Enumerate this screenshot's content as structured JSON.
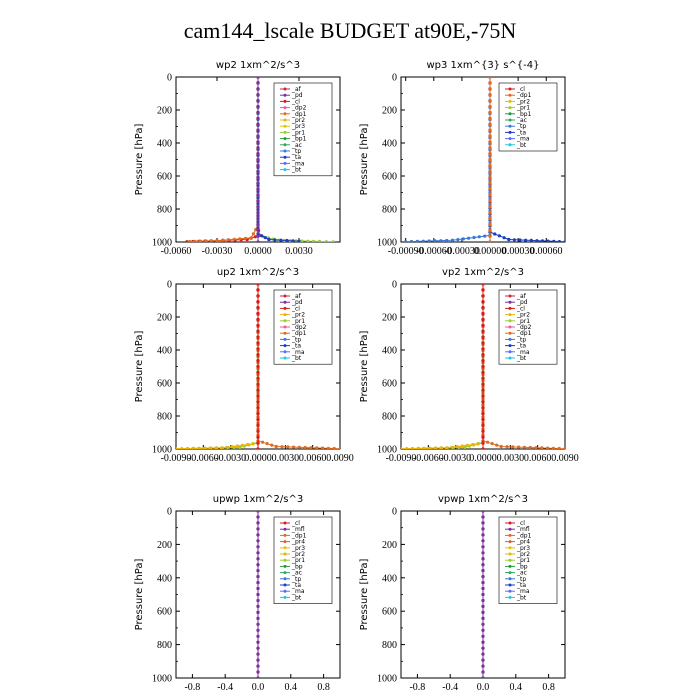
{
  "figure": {
    "title": "cam144_lscale  BUDGET at90E,-75N"
  },
  "colors": {
    "_af": "#cc2244",
    "_pd": "#7a2fa0",
    "_cl": "#d81b1b",
    "_dp2": "#ee5aa0",
    "_dp1": "#e26b1e",
    "_pr2": "#f0b400",
    "_pr3": "#e8c200",
    "_pr1": "#9acd32",
    "_bp1": "#1e9e3a",
    "_bp": "#1e9e3a",
    "_ac": "#2faa5a",
    "_tp": "#3a78d8",
    "_ta": "#1a3fc0",
    "_ma": "#5a6cff",
    "_bt": "#1fc8e0",
    "_mfl": "#7a2fa0",
    "_pr4": "#e05a3a"
  },
  "chart_data": [
    {
      "type": "line",
      "title": "wp2   1xm^2/s^3",
      "ylabel": "Pressure [hPa]",
      "ylim": [
        1000,
        0
      ],
      "xlim": [
        -0.006,
        0.006
      ],
      "xticks": [
        -0.006,
        -0.003,
        0.0,
        0.003
      ],
      "xtick_labels": [
        "-0.0060",
        "-0.0030",
        "0.0000",
        "0.0030"
      ],
      "yticks": [
        0,
        200,
        400,
        600,
        800,
        1000
      ],
      "ytick_labels": [
        "0",
        "200",
        "400",
        "600",
        "800",
        "1000"
      ],
      "legend": [
        "_af",
        "_pd",
        "_cl",
        "_dp2",
        "_dp1",
        "_pr2",
        "_pr3",
        "_pr1",
        "_bp1",
        "_ac",
        "_tp",
        "_ta",
        "_ma",
        "_bt"
      ],
      "legend_placement": "top-right",
      "series": [
        {
          "key": "_cl",
          "points": [
            [
              0,
              0
            ],
            [
              0,
              900
            ],
            [
              0.0001,
              960
            ],
            [
              -0.0008,
              985
            ],
            [
              -0.0052,
              998
            ]
          ]
        },
        {
          "key": "_dp1",
          "points": [
            [
              0,
              0
            ],
            [
              0,
              900
            ],
            [
              -0.0005,
              975
            ],
            [
              -0.003,
              992
            ],
            [
              -0.005,
              997
            ]
          ]
        },
        {
          "key": "_pr1",
          "points": [
            [
              0,
              0
            ],
            [
              0,
              960
            ],
            [
              0.0015,
              990
            ],
            [
              0.0045,
              997
            ],
            [
              0.0055,
              999
            ]
          ]
        },
        {
          "key": "_ta",
          "points": [
            [
              0,
              0
            ],
            [
              0,
              950
            ],
            [
              0.0008,
              985
            ],
            [
              0.003,
              995
            ]
          ]
        },
        {
          "key": "_af",
          "points": [
            [
              0,
              0
            ],
            [
              0,
              1000
            ]
          ]
        },
        {
          "key": "_pd",
          "points": [
            [
              0,
              0
            ],
            [
              0,
              1000
            ]
          ]
        }
      ]
    },
    {
      "type": "line",
      "title": "wp3   1xm^{3} s^{-4}",
      "ylabel": "Pressure [hPa]",
      "ylim": [
        1000,
        0
      ],
      "xlim": [
        -0.00095,
        0.0008
      ],
      "xticks": [
        -0.0009,
        -0.0006,
        -0.0003,
        0.0,
        0.0003,
        0.0006
      ],
      "xtick_labels": [
        "-0.00090",
        "-0.00060",
        "-0.00030",
        "0.00000",
        "0.00030",
        "0.00060"
      ],
      "yticks": [
        0,
        200,
        400,
        600,
        800,
        1000
      ],
      "ytick_labels": [
        "0",
        "200",
        "400",
        "600",
        "800",
        "1000"
      ],
      "legend": [
        "_cl",
        "_dp1",
        "_pr2",
        "_pr1",
        "_bp1",
        "_ac",
        "_tp",
        "_ta",
        "_ma",
        "_bt"
      ],
      "legend_placement": "top-right",
      "series": [
        {
          "key": "_ta",
          "points": [
            [
              0,
              0
            ],
            [
              0,
              940
            ],
            [
              0.0002,
              985
            ],
            [
              0.0008,
              999
            ]
          ]
        },
        {
          "key": "_tp",
          "points": [
            [
              0,
              0
            ],
            [
              0,
              960
            ],
            [
              -0.0004,
              990
            ],
            [
              -0.0009,
              998
            ]
          ]
        },
        {
          "key": "_cl",
          "points": [
            [
              0,
              0
            ],
            [
              0,
              1000
            ]
          ]
        },
        {
          "key": "_dp1",
          "points": [
            [
              0,
              0
            ],
            [
              0,
              1000
            ]
          ]
        }
      ]
    },
    {
      "type": "line",
      "title": "up2   1xm^2/s^3",
      "ylabel": "Pressure [hPa]",
      "ylim": [
        1000,
        0
      ],
      "xlim": [
        -0.009,
        0.009
      ],
      "xticks": [
        -0.009,
        -0.006,
        -0.003,
        0.0,
        0.003,
        0.006,
        0.009
      ],
      "xtick_labels": [
        "-0.0090",
        "-0.0060",
        "-0.0030",
        "0.0000",
        "0.0030",
        "0.0060",
        "0.0090"
      ],
      "yticks": [
        0,
        200,
        400,
        600,
        800,
        1000
      ],
      "ytick_labels": [
        "0",
        "200",
        "400",
        "600",
        "800",
        "1000"
      ],
      "legend": [
        "_af",
        "_pd",
        "_cl",
        "_pr2",
        "_pr1",
        "_dp2",
        "_dp1",
        "_tp",
        "_ta",
        "_ma",
        "_bt"
      ],
      "legend_placement": "top-right",
      "series": [
        {
          "key": "_pr1",
          "points": [
            [
              0,
              0
            ],
            [
              0,
              960
            ],
            [
              -0.002,
              990
            ],
            [
              -0.009,
              999
            ]
          ]
        },
        {
          "key": "_pr2",
          "points": [
            [
              0,
              0
            ],
            [
              0,
              965
            ],
            [
              -0.004,
              994
            ],
            [
              -0.009,
              999
            ]
          ]
        },
        {
          "key": "_dp1",
          "points": [
            [
              0,
              0
            ],
            [
              0,
              950
            ],
            [
              0.002,
              985
            ],
            [
              0.009,
              998
            ]
          ]
        },
        {
          "key": "_af",
          "points": [
            [
              0,
              0
            ],
            [
              0,
              1000
            ]
          ]
        },
        {
          "key": "_cl",
          "points": [
            [
              0,
              0
            ],
            [
              0,
              1000
            ]
          ]
        }
      ]
    },
    {
      "type": "line",
      "title": "vp2   1xm^2/s^3",
      "ylabel": "Pressure [hPa]",
      "ylim": [
        1000,
        0
      ],
      "xlim": [
        -0.009,
        0.009
      ],
      "xticks": [
        -0.009,
        -0.006,
        -0.003,
        0.0,
        0.003,
        0.006,
        0.009
      ],
      "xtick_labels": [
        "-0.0090",
        "-0.0060",
        "-0.0030",
        "0.0000",
        "0.0030",
        "0.0060",
        "0.0090"
      ],
      "yticks": [
        0,
        200,
        400,
        600,
        800,
        1000
      ],
      "ytick_labels": [
        "0",
        "200",
        "400",
        "600",
        "800",
        "1000"
      ],
      "legend": [
        "_af",
        "_pd",
        "_cl",
        "_pr2",
        "_pr1",
        "_dp2",
        "_dp1",
        "_tp",
        "_ta",
        "_ma",
        "_bt"
      ],
      "legend_placement": "top-right",
      "series": [
        {
          "key": "_pr1",
          "points": [
            [
              0,
              0
            ],
            [
              0,
              960
            ],
            [
              -0.002,
              990
            ],
            [
              -0.009,
              999
            ]
          ]
        },
        {
          "key": "_pr2",
          "points": [
            [
              0,
              0
            ],
            [
              0,
              965
            ],
            [
              -0.004,
              994
            ],
            [
              -0.009,
              999
            ]
          ]
        },
        {
          "key": "_dp1",
          "points": [
            [
              0,
              0
            ],
            [
              0,
              950
            ],
            [
              0.002,
              985
            ],
            [
              0.009,
              998
            ]
          ]
        },
        {
          "key": "_af",
          "points": [
            [
              0,
              0
            ],
            [
              0,
              1000
            ]
          ]
        },
        {
          "key": "_cl",
          "points": [
            [
              0,
              0
            ],
            [
              0,
              1000
            ]
          ]
        }
      ]
    },
    {
      "type": "line",
      "title": "upwp   1xm^2/s^3",
      "ylabel": "Pressure [hPa]",
      "ylim": [
        1000,
        0
      ],
      "xlim": [
        -1.0,
        1.0
      ],
      "xticks": [
        -0.8,
        -0.4,
        0.0,
        0.4,
        0.8
      ],
      "xtick_labels": [
        "-0.8",
        "-0.4",
        "0.0",
        "0.4",
        "0.8"
      ],
      "yticks": [
        0,
        200,
        400,
        600,
        800,
        1000
      ],
      "ytick_labels": [
        "0",
        "200",
        "400",
        "600",
        "800",
        "1000"
      ],
      "legend": [
        "_cl",
        "_mfl",
        "_dp1",
        "_pr4",
        "_pr3",
        "_pr2",
        "_pr1",
        "_bp",
        "_ac",
        "_tp",
        "_ta",
        "_ma",
        "_bt"
      ],
      "legend_placement": "top-right",
      "series": [
        {
          "key": "_cl",
          "points": [
            [
              0,
              0
            ],
            [
              0,
              1000
            ]
          ]
        },
        {
          "key": "_mfl",
          "points": [
            [
              0,
              0
            ],
            [
              0,
              1000
            ]
          ]
        }
      ]
    },
    {
      "type": "line",
      "title": "vpwp   1xm^2/s^3",
      "ylabel": "Pressure [hPa]",
      "ylim": [
        1000,
        0
      ],
      "xlim": [
        -1.0,
        1.0
      ],
      "xticks": [
        -0.8,
        -0.4,
        0.0,
        0.4,
        0.8
      ],
      "xtick_labels": [
        "-0.8",
        "-0.4",
        "0.0",
        "0.4",
        "0.8"
      ],
      "yticks": [
        0,
        200,
        400,
        600,
        800,
        1000
      ],
      "ytick_labels": [
        "0",
        "200",
        "400",
        "600",
        "800",
        "1000"
      ],
      "legend": [
        "_cl",
        "_mfl",
        "_dp1",
        "_pr4",
        "_pr3",
        "_pr2",
        "_pr1",
        "_bp",
        "_ac",
        "_tp",
        "_ta",
        "_ma",
        "_bt"
      ],
      "legend_placement": "top-right",
      "series": [
        {
          "key": "_cl",
          "points": [
            [
              0,
              0
            ],
            [
              0,
              1000
            ]
          ]
        },
        {
          "key": "_mfl",
          "points": [
            [
              0,
              0
            ],
            [
              0,
              1000
            ]
          ]
        }
      ]
    }
  ]
}
